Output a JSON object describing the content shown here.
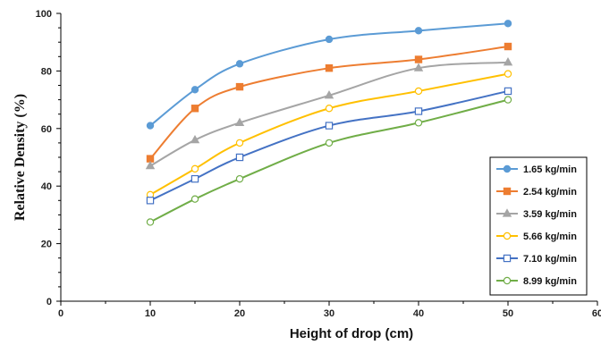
{
  "chart_data": {
    "type": "line",
    "xlabel": "Height of drop (cm)",
    "ylabel": "Relative Density (%)",
    "xlim": [
      0,
      60
    ],
    "ylim": [
      0,
      100
    ],
    "x_ticks": [
      "0",
      "10",
      "20",
      "30",
      "40",
      "50",
      "60"
    ],
    "y_ticks": [
      "0",
      "20",
      "40",
      "60",
      "80",
      "100"
    ],
    "x": [
      10,
      15,
      20,
      30,
      40,
      50
    ],
    "grid": false,
    "legend_position": "right",
    "series": [
      {
        "name": "1.65  kg/min",
        "values": [
          61,
          73.5,
          82.5,
          91,
          94,
          96.5
        ],
        "color": "#5b9bd5",
        "marker": "circle-filled"
      },
      {
        "name": "2.54  kg/min",
        "values": [
          49.5,
          67,
          74.5,
          81,
          84,
          88.5
        ],
        "color": "#ed7d31",
        "marker": "square-filled"
      },
      {
        "name": "3.59  kg/min",
        "values": [
          47,
          56,
          62,
          71.5,
          81,
          83
        ],
        "color": "#a5a5a5",
        "marker": "triangle-filled"
      },
      {
        "name": "5.66  kg/min",
        "values": [
          37,
          46,
          55,
          67,
          73,
          79
        ],
        "color": "#ffc000",
        "marker": "circle-open"
      },
      {
        "name": "7.10  kg/min",
        "values": [
          35,
          42.5,
          50,
          61,
          66,
          73
        ],
        "color": "#4472c4",
        "marker": "square-open"
      },
      {
        "name": "8.99  kg/min",
        "values": [
          27.5,
          35.5,
          42.5,
          55,
          62,
          70
        ],
        "color": "#70ad47",
        "marker": "circle-open"
      }
    ]
  }
}
